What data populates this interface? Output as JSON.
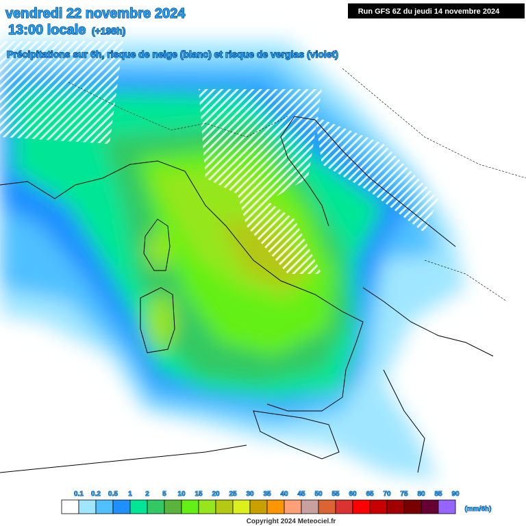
{
  "header": {
    "date": "vendredi 22 novembre 2024",
    "time": "13:00 locale",
    "lead_time": "(+198h)",
    "subtitle": "Précipitations sur 6h, risque de neige (blanc) et risque de verglas (violet)",
    "run": "Run GFS 6Z du jeudi 14 novembre 2024"
  },
  "legend": {
    "labels": [
      "0.1",
      "0.2",
      "0.5",
      "1",
      "2",
      "5",
      "10",
      "15",
      "20",
      "25",
      "30",
      "35",
      "40",
      "45",
      "50",
      "55",
      "60",
      "65",
      "70",
      "75",
      "80",
      "85",
      "90"
    ],
    "colors": [
      "#ffffff",
      "#a0e6ff",
      "#50c0ff",
      "#1e90ff",
      "#00e696",
      "#32c864",
      "#5ab43c",
      "#64f014",
      "#96e61e",
      "#b4c814",
      "#dcf01e",
      "#c8a000",
      "#ff9600",
      "#ffa078",
      "#c8a0a0",
      "#dc6432",
      "#dc3232",
      "#ff0000",
      "#c80000",
      "#a00000",
      "#780000",
      "#640032",
      "#9664ff"
    ],
    "unit": "(mm/6h)"
  },
  "footer": {
    "copyright": "Copyright 2024 Meteociel.fr"
  }
}
